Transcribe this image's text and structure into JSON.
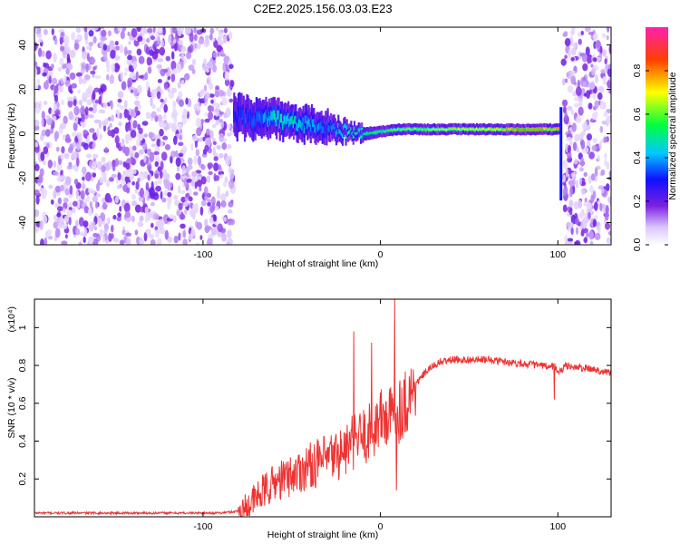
{
  "title": "C2E2.2025.156.03.03.E23",
  "chart_data": [
    {
      "type": "heatmap",
      "xlabel": "Height of straight line (km)",
      "ylabel": "Frequency (Hz)",
      "xlim": [
        -195,
        130
      ],
      "ylim": [
        -50,
        48
      ],
      "xticks": [
        -100,
        0,
        100
      ],
      "xtick_labels": [
        "-100",
        "0",
        "100"
      ],
      "yticks": [
        -40,
        -20,
        0,
        20,
        40
      ],
      "ytick_labels": [
        "-40",
        "-20",
        "0",
        "20",
        "40"
      ],
      "colorbar": {
        "label": "Normalized spectral amplitude",
        "range": [
          0,
          1
        ],
        "ticks": [
          0.0,
          0.2,
          0.4,
          0.6,
          0.8
        ],
        "tick_labels": [
          "0.0",
          "0.2",
          "0.4",
          "0.6",
          "0.8"
        ]
      },
      "noise_regions_km": [
        [
          -195,
          -83
        ],
        [
          103,
          130
        ]
      ],
      "signal_track": {
        "x": [
          -83,
          -70,
          -60,
          -50,
          -40,
          -30,
          -20,
          -10,
          0,
          10,
          20,
          40,
          60,
          80,
          100
        ],
        "freq_hz": [
          8,
          6,
          7,
          5,
          4,
          3,
          1,
          0,
          1,
          2,
          2,
          2,
          2,
          2,
          2
        ],
        "halfwidth_hz": [
          8,
          7,
          7,
          6,
          6,
          5,
          3,
          2,
          1.5,
          1.5,
          1.5,
          1.5,
          1.5,
          1.5,
          1.5
        ],
        "amplitude": [
          0.3,
          0.35,
          0.45,
          0.45,
          0.4,
          0.35,
          0.45,
          0.5,
          0.55,
          0.6,
          0.6,
          0.65,
          0.7,
          0.8,
          0.75
        ]
      }
    },
    {
      "type": "line",
      "xlabel": "Height of straight line (km)",
      "ylabel": "SNR (10 * v/v)",
      "y_multiplier_label": "(x10⁴)",
      "xlim": [
        -195,
        130
      ],
      "ylim": [
        0,
        1.15
      ],
      "xticks": [
        -100,
        0,
        100
      ],
      "xtick_labels": [
        "-100",
        "0",
        "100"
      ],
      "yticks": [
        0.2,
        0.4,
        0.6,
        0.8,
        1.0
      ],
      "ytick_labels": [
        "0.2",
        "0.4",
        "0.6",
        "0.8",
        "1"
      ],
      "series_color": "#ee3333",
      "x": [
        -195,
        -180,
        -160,
        -140,
        -120,
        -100,
        -90,
        -80,
        -75,
        -70,
        -60,
        -50,
        -40,
        -30,
        -20,
        -15,
        -10,
        -5,
        0,
        5,
        8,
        10,
        15,
        20,
        25,
        30,
        35,
        40,
        50,
        60,
        70,
        80,
        90,
        95,
        98,
        100,
        105,
        110,
        120,
        130
      ],
      "y": [
        0.02,
        0.02,
        0.02,
        0.02,
        0.02,
        0.02,
        0.02,
        0.03,
        0.05,
        0.1,
        0.18,
        0.22,
        0.27,
        0.3,
        0.35,
        0.4,
        0.42,
        0.45,
        0.52,
        0.52,
        0.55,
        0.56,
        0.62,
        0.7,
        0.76,
        0.8,
        0.82,
        0.83,
        0.83,
        0.83,
        0.82,
        0.81,
        0.8,
        0.79,
        0.8,
        0.76,
        0.8,
        0.79,
        0.78,
        0.76
      ]
    }
  ]
}
